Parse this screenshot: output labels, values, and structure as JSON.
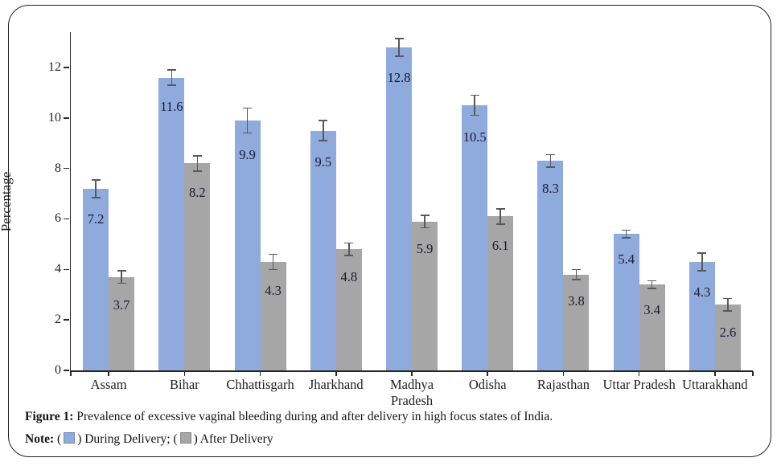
{
  "figure": {
    "caption": {
      "label": "Figure 1:",
      "text": "Prevalence of excessive vaginal bleeding during and after delivery in high focus states of India."
    },
    "note": {
      "label": "Note:",
      "segments": [
        "(",
        ") During Delivery; (",
        ") After Delivery"
      ]
    }
  },
  "chart_data": {
    "type": "bar",
    "title": "",
    "xlabel": "",
    "ylabel": "Percentage",
    "categories": [
      "Assam",
      "Bihar",
      "Chhattisgarh",
      "Jharkhand",
      "Madhya Pradesh",
      "Odisha",
      "Rajasthan",
      "Uttar Pradesh",
      "Uttarakhand"
    ],
    "series": [
      {
        "name": "During Delivery",
        "color": "#8FAADC",
        "swatch_border": "#6f87b8",
        "values": [
          7.2,
          11.6,
          9.9,
          9.5,
          12.8,
          10.5,
          8.3,
          5.4,
          4.3
        ],
        "errors": [
          0.35,
          0.3,
          0.5,
          0.4,
          0.35,
          0.4,
          0.25,
          0.15,
          0.35
        ]
      },
      {
        "name": "After Delivery",
        "color": "#A6A6A6",
        "swatch_border": "#858585",
        "values": [
          3.7,
          8.2,
          4.3,
          4.8,
          5.9,
          6.1,
          3.8,
          3.4,
          2.6
        ],
        "errors": [
          0.25,
          0.3,
          0.3,
          0.25,
          0.25,
          0.3,
          0.2,
          0.15,
          0.25
        ]
      }
    ],
    "ylim": [
      0,
      13.4
    ],
    "yticks": [
      0,
      2,
      4,
      6,
      8,
      10,
      12
    ],
    "grid": false,
    "error_bars": true,
    "error_bar_color": "#595959",
    "data_labels": "inside-end",
    "legend_position": "bottom-note"
  }
}
